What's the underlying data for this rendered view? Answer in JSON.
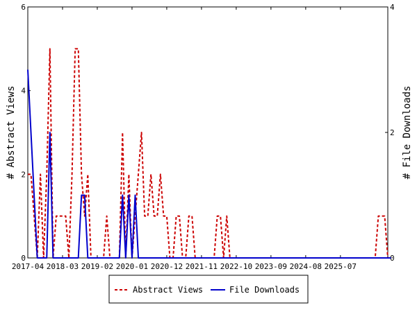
{
  "chart_data": {
    "type": "line",
    "xlabel": "",
    "ylabel_left": "# Abstract Views",
    "ylabel_right": "# File Downloads",
    "x_tick_labels": [
      "2017-04",
      "2018-03",
      "2019-02",
      "2020-01",
      "2020-12",
      "2021-11",
      "2022-10",
      "2023-09",
      "2024-08",
      "2025-07"
    ],
    "x_start": "2017-04",
    "ylim_left": [
      0,
      6
    ],
    "ylim_right": [
      0,
      4
    ],
    "y_ticks_left": [
      "0",
      "2",
      "4",
      "6"
    ],
    "y_ticks_right": [
      "0",
      "2",
      "4"
    ],
    "grid": false,
    "legend_position": "bottom",
    "series": [
      {
        "name": "Abstract Views",
        "axis": "left",
        "color": "#cc0000",
        "style": "dashed",
        "values": [
          2,
          2,
          1,
          0,
          2,
          0,
          2,
          5,
          0,
          1,
          1,
          1,
          1,
          0,
          2,
          5,
          5,
          2,
          1,
          2,
          0,
          0,
          0,
          0,
          0,
          1,
          0,
          0,
          0,
          0,
          3,
          0,
          2,
          0,
          1,
          2,
          3,
          1,
          1,
          2,
          1,
          1,
          2,
          1,
          1,
          0,
          0,
          1,
          1,
          0,
          0,
          1,
          1,
          0,
          0,
          0,
          0,
          0,
          0,
          0,
          1,
          1,
          0,
          1,
          0,
          0,
          0,
          0,
          0,
          0,
          0,
          0,
          0,
          0,
          0,
          0,
          0,
          0,
          0,
          0,
          0,
          0,
          0,
          0,
          0,
          0,
          0,
          0,
          0,
          0,
          0,
          0,
          0,
          0,
          0,
          0,
          0,
          0,
          0,
          0,
          0,
          0,
          0,
          0,
          0,
          0,
          0,
          0,
          0,
          0,
          0,
          1,
          1,
          1,
          0
        ]
      },
      {
        "name": "File Downloads",
        "axis": "right",
        "color": "#0000cc",
        "style": "solid",
        "values": [
          3,
          2,
          1,
          0,
          0,
          0,
          0,
          2,
          0,
          0,
          0,
          0,
          0,
          0,
          0,
          0,
          0,
          1,
          1,
          0,
          0,
          0,
          0,
          0,
          0,
          0,
          0,
          0,
          0,
          0,
          1,
          0,
          1,
          0,
          1,
          0,
          0,
          0,
          0,
          0,
          0,
          0,
          0,
          0,
          0,
          0,
          0,
          0,
          0,
          0,
          0,
          0,
          0,
          0,
          0,
          0,
          0,
          0,
          0,
          0,
          0,
          0,
          0,
          0,
          0,
          0,
          0,
          0,
          0,
          0,
          0,
          0,
          0,
          0,
          0,
          0,
          0,
          0,
          0,
          0,
          0,
          0,
          0,
          0,
          0,
          0,
          0,
          0,
          0,
          0,
          0,
          0,
          0,
          0,
          0,
          0,
          0,
          0,
          0,
          0,
          0,
          0,
          0,
          0,
          0,
          0,
          0,
          0,
          0,
          0,
          0,
          0,
          0,
          0,
          0,
          0
        ]
      }
    ]
  }
}
